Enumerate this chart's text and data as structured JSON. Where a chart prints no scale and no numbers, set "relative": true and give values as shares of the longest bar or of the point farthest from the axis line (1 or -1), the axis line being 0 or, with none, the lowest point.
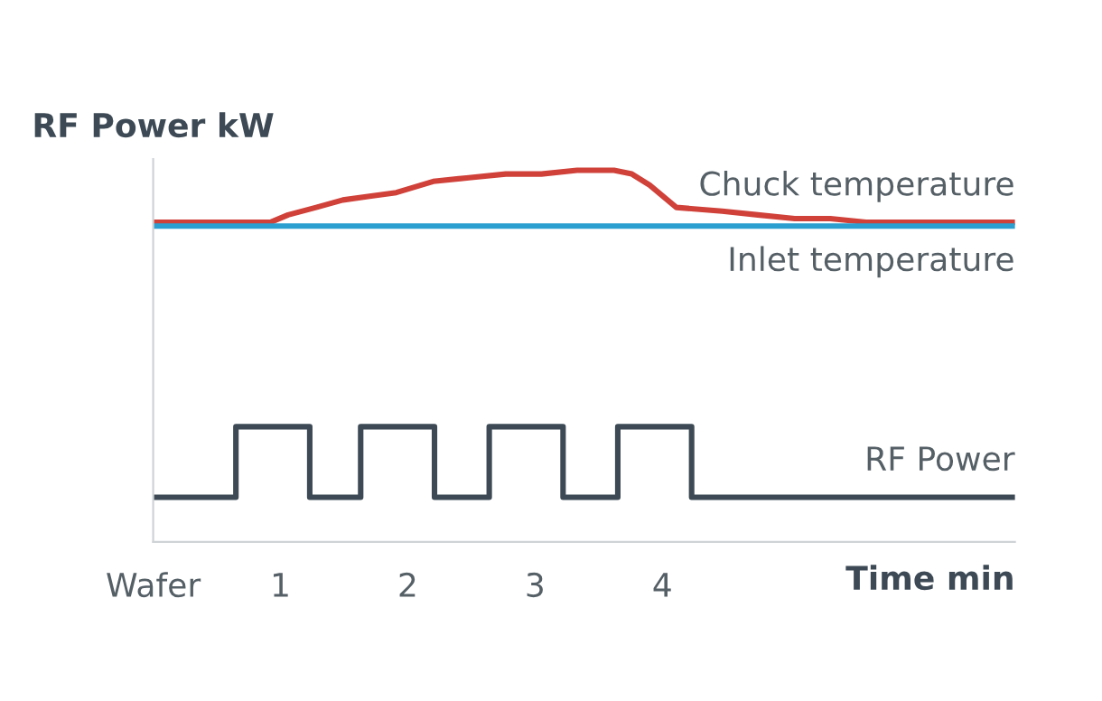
{
  "chart_data": {
    "type": "line",
    "relative": true,
    "ylabel": "RF Power kW",
    "xlabel": "Time min",
    "xlim": [
      0,
      6.77
    ],
    "xticks": [
      {
        "value": 0,
        "label": "Wafer"
      },
      1,
      2,
      3,
      4
    ],
    "legend": false,
    "grid": false,
    "series": [
      {
        "name": "Chuck temperature",
        "color": "#d0413a",
        "x": [
          0,
          0.92,
          1.06,
          1.28,
          1.49,
          1.7,
          1.91,
          2.2,
          2.48,
          2.77,
          3.05,
          3.33,
          3.62,
          3.76,
          3.9,
          4.11,
          4.47,
          4.75,
          5.04,
          5.32,
          5.6,
          5.89,
          6.77
        ],
        "values": [
          0.86,
          0.86,
          0.88,
          0.9,
          0.92,
          0.93,
          0.94,
          0.97,
          0.98,
          0.99,
          0.99,
          1.0,
          1.0,
          0.99,
          0.96,
          0.9,
          0.89,
          0.88,
          0.87,
          0.87,
          0.86,
          0.86,
          0.86
        ]
      },
      {
        "name": "Inlet temperature",
        "color": "#2a9fd0",
        "x": [
          0,
          6.77
        ],
        "values": [
          0.85,
          0.85
        ]
      },
      {
        "name": "RF Power",
        "type": "step",
        "color": "#3d4a55",
        "x": [
          0,
          0.65,
          1.23,
          1.63,
          2.21,
          2.64,
          3.22,
          3.65,
          4.23,
          6.77
        ],
        "values": [
          0.12,
          0.31,
          0.12,
          0.31,
          0.12,
          0.31,
          0.12,
          0.31,
          0.12,
          0.12
        ]
      }
    ]
  }
}
